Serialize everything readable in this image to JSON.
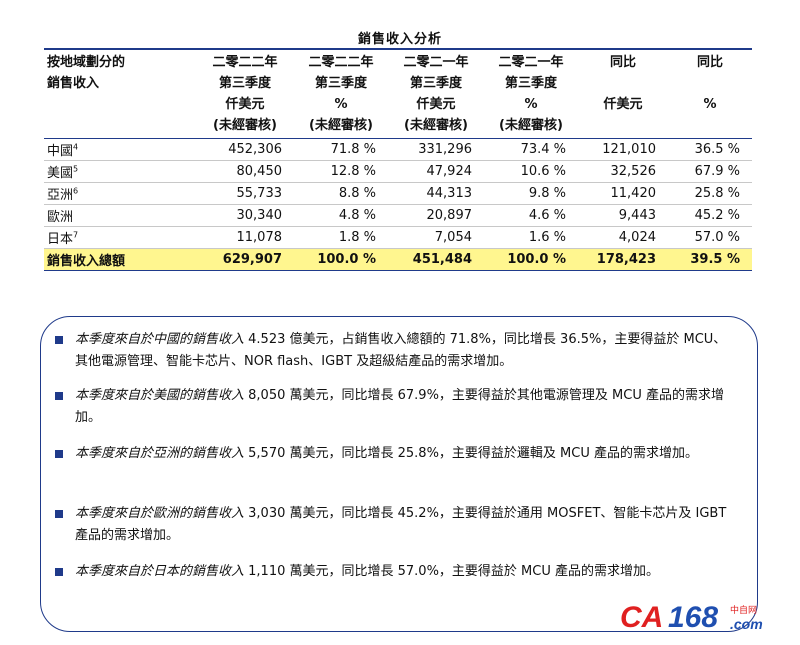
{
  "title": "銷售收入分析",
  "table": {
    "header": {
      "region": [
        "按地域劃分的",
        "銷售收入"
      ],
      "cols": [
        [
          "二零二二年",
          "第三季度",
          "仟美元",
          "(未經審核)"
        ],
        [
          "二零二二年",
          "第三季度",
          "%",
          "(未經審核)"
        ],
        [
          "二零二一年",
          "第三季度",
          "仟美元",
          "(未經審核)"
        ],
        [
          "二零二一年",
          "第三季度",
          "%",
          "(未經審核)"
        ],
        [
          "同比",
          "",
          "仟美元",
          ""
        ],
        [
          "同比",
          "",
          "%",
          ""
        ]
      ]
    },
    "rows": [
      {
        "region": "中國",
        "sup": "4",
        "v": [
          "452,306",
          "71.8 %",
          "331,296",
          "73.4 %",
          "121,010",
          "36.5 %"
        ]
      },
      {
        "region": "美國",
        "sup": "5",
        "v": [
          "80,450",
          "12.8 %",
          "47,924",
          "10.6 %",
          "32,526",
          "67.9 %"
        ]
      },
      {
        "region": "亞洲",
        "sup": "6",
        "v": [
          "55,733",
          "8.8 %",
          "44,313",
          "9.8 %",
          "11,420",
          "25.8 %"
        ]
      },
      {
        "region": "歐洲",
        "sup": "",
        "v": [
          "30,340",
          "4.8 %",
          "20,897",
          "4.6 %",
          "9,443",
          "45.2 %"
        ]
      },
      {
        "region": "日本",
        "sup": "7",
        "v": [
          "11,078",
          "1.8 %",
          "7,054",
          "1.6 %",
          "4,024",
          "57.0 %"
        ]
      }
    ],
    "total": {
      "region": "銷售收入總額",
      "v": [
        "629,907",
        "100.0 %",
        "451,484",
        "100.0 %",
        "178,423",
        "39.5 %"
      ]
    }
  },
  "notes": [
    {
      "lead": "本季度來自於中國的銷售收入",
      "rest": " 4.523 億美元，占銷售收入總額的 71.8%，同比增長 36.5%，主要得益於 MCU、其他電源管理、智能卡芯片、NOR flash、IGBT 及超級結產品的需求增加。"
    },
    {
      "lead": "本季度來自於美國的銷售收入",
      "rest": " 8,050 萬美元，同比增長 67.9%，主要得益於其他電源管理及 MCU 產品的需求增加。"
    },
    {
      "lead": "本季度來自於亞洲的銷售收入",
      "rest": " 5,570 萬美元，同比增長 25.8%，主要得益於邏輯及 MCU 產品的需求增加。"
    },
    {
      "lead": "本季度來自於歐洲的銷售收入",
      "rest": " 3,030 萬美元，同比增長 45.2%，主要得益於通用 MOSFET、智能卡芯片及 IGBT 產品的需求增加。"
    },
    {
      "lead": "本季度來自於日本的銷售收入",
      "rest": " 1,110 萬美元，同比增長 57.0%，主要得益於 MCU 產品的需求增加。"
    }
  ],
  "logo": {
    "text": "CA168",
    "sub_cn": "中自网",
    "sub_dom": ".com",
    "color_red": "#e02020",
    "color_blue": "#1f4fb0"
  }
}
